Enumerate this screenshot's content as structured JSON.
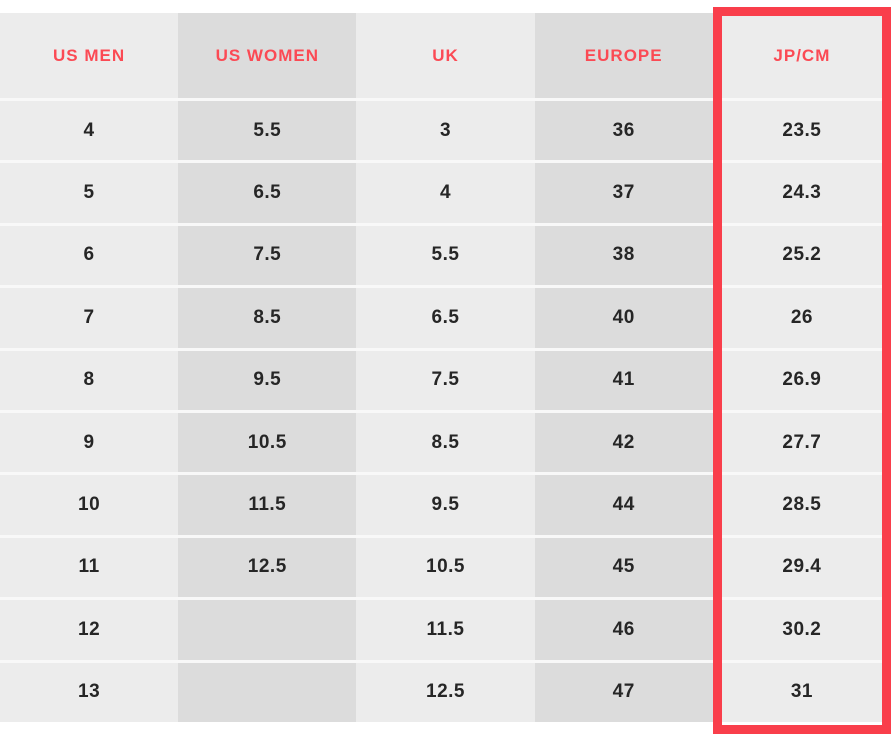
{
  "colors": {
    "page_background": "#ffffff",
    "highlight_border_red": "#f93e4b",
    "header_text_red": "#fb4a54",
    "light_column_bg": "#ececec",
    "dark_column_bg": "#dcdcdc",
    "row_divider": "#f8f8f8",
    "data_text": "#262626"
  },
  "chart_data": {
    "type": "table",
    "columns": [
      "US MEN",
      "US WOMEN",
      "UK",
      "EUROPE",
      "JP/CM"
    ],
    "highlighted_column": "JP/CM",
    "rows": [
      [
        "4",
        "5.5",
        "3",
        "36",
        "23.5"
      ],
      [
        "5",
        "6.5",
        "4",
        "37",
        "24.3"
      ],
      [
        "6",
        "7.5",
        "5.5",
        "38",
        "25.2"
      ],
      [
        "7",
        "8.5",
        "6.5",
        "40",
        "26"
      ],
      [
        "8",
        "9.5",
        "7.5",
        "41",
        "26.9"
      ],
      [
        "9",
        "10.5",
        "8.5",
        "42",
        "27.7"
      ],
      [
        "10",
        "11.5",
        "9.5",
        "44",
        "28.5"
      ],
      [
        "11",
        "12.5",
        "10.5",
        "45",
        "29.4"
      ],
      [
        "12",
        "",
        "11.5",
        "46",
        "30.2"
      ],
      [
        "13",
        "",
        "12.5",
        "47",
        "31"
      ]
    ],
    "layout": {
      "grid": "column-striped",
      "header_position": "top",
      "highlight_style": "thick-red-outline-around-last-column"
    }
  }
}
